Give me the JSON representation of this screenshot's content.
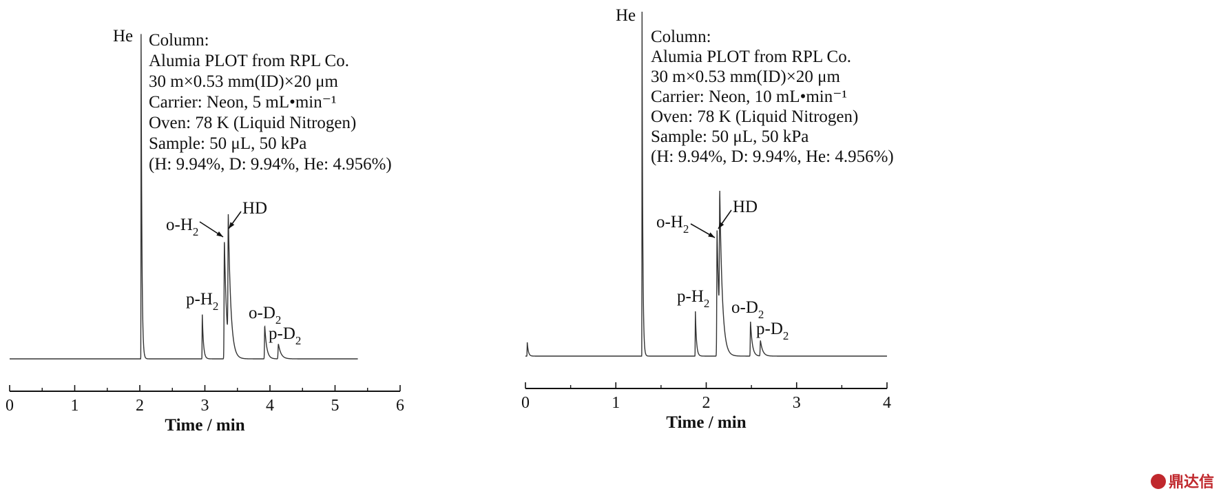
{
  "chart_data": [
    {
      "type": "line",
      "xlabel": "Time / min",
      "xlim": [
        0,
        6
      ],
      "xticks": [
        "0",
        "1",
        "2",
        "3",
        "4",
        "5",
        "6"
      ],
      "annotation_lines": [
        "Column:",
        "Alumia PLOT from RPL Co.",
        "30 m×0.53 mm(ID)×20 μm",
        "Carrier: Neon, 5 mL•min⁻¹",
        "Oven: 78 K (Liquid Nitrogen)",
        "Sample: 50 μL, 50 kPa",
        "(H: 9.94%, D: 9.94%, He: 4.956%)"
      ],
      "peaks": [
        {
          "base": "He",
          "sub": "",
          "time": 2.02,
          "height": 1.0,
          "width": 0.012
        },
        {
          "base": "p-H",
          "sub": "2",
          "time": 2.96,
          "height": 0.135,
          "width": 0.018
        },
        {
          "base": "o-H",
          "sub": "2",
          "time": 3.3,
          "height": 0.355,
          "width": 0.035
        },
        {
          "base": "HD",
          "sub": "",
          "time": 3.36,
          "height": 0.37,
          "width": 0.04
        },
        {
          "base": "o-D",
          "sub": "2",
          "time": 3.92,
          "height": 0.1,
          "width": 0.03
        },
        {
          "base": "p-D",
          "sub": "2",
          "time": 4.13,
          "height": 0.045,
          "width": 0.04
        }
      ]
    },
    {
      "type": "line",
      "xlabel": "Time / min",
      "xlim": [
        0,
        4
      ],
      "xticks": [
        "0",
        "1",
        "2",
        "3",
        "4"
      ],
      "annotation_lines": [
        "Column:",
        "Alumia PLOT from RPL Co.",
        "30 m×0.53 mm(ID)×20 μm",
        "Carrier: Neon, 10 mL•min⁻¹",
        "Oven: 78 K (Liquid Nitrogen)",
        "Sample: 50 μL, 50 kPa",
        "(H: 9.94%, D: 9.94%, He: 4.956%)"
      ],
      "peaks": [
        {
          "base": "",
          "sub": "",
          "time": 0.02,
          "height": 0.04,
          "width": 0.012
        },
        {
          "base": "He",
          "sub": "",
          "time": 1.29,
          "height": 1.0,
          "width": 0.008
        },
        {
          "base": "p-H",
          "sub": "2",
          "time": 1.88,
          "height": 0.13,
          "width": 0.012
        },
        {
          "base": "o-H",
          "sub": "2",
          "time": 2.12,
          "height": 0.365,
          "width": 0.025
        },
        {
          "base": "HD",
          "sub": "",
          "time": 2.15,
          "height": 0.37,
          "width": 0.03
        },
        {
          "base": "o-D",
          "sub": "2",
          "time": 2.49,
          "height": 0.1,
          "width": 0.02
        },
        {
          "base": "p-D",
          "sub": "2",
          "time": 2.6,
          "height": 0.045,
          "width": 0.025
        }
      ]
    }
  ],
  "watermark": "鼎达信",
  "colors": {
    "line": "#333333",
    "watermark": "#c0282d"
  }
}
